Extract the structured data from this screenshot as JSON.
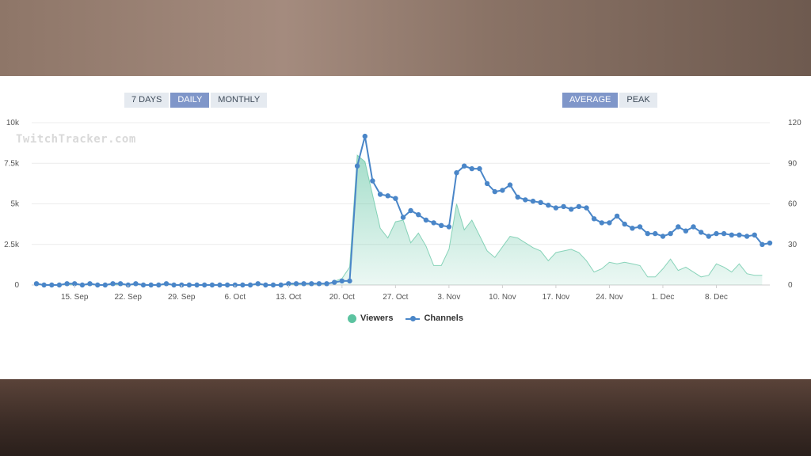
{
  "range_buttons": [
    {
      "label": "7 DAYS",
      "active": false
    },
    {
      "label": "DAILY",
      "active": true
    },
    {
      "label": "MONTHLY",
      "active": false
    }
  ],
  "mode_buttons": [
    {
      "label": "AVERAGE",
      "active": true
    },
    {
      "label": "PEAK",
      "active": false
    }
  ],
  "watermark": "TwitchTracker.com",
  "legend": {
    "viewers": "Viewers",
    "channels": "Channels"
  },
  "colors": {
    "viewers": "#5cc3a0",
    "channels": "#4a86c8",
    "active_button": "#7f96c9"
  },
  "chart_data": {
    "type": "area+line",
    "x_tick_labels": [
      "15. Sep",
      "22. Sep",
      "29. Sep",
      "6. Oct",
      "13. Oct",
      "20. Oct",
      "27. Oct",
      "3. Nov",
      "10. Nov",
      "17. Nov",
      "24. Nov",
      "1. Dec",
      "8. Dec"
    ],
    "y_left": {
      "ticks": [
        "0",
        "2.5k",
        "5k",
        "7.5k",
        "10k"
      ],
      "range": [
        0,
        10000
      ]
    },
    "y_right": {
      "ticks": [
        "0",
        "30",
        "60",
        "90",
        "120"
      ],
      "range": [
        0,
        120
      ]
    },
    "x_range_days": [
      0,
      96
    ],
    "grid": true,
    "legend_position": "bottom-center",
    "series": [
      {
        "name": "Viewers",
        "kind": "area",
        "points": [
          [
            0,
            20
          ],
          [
            10,
            20
          ],
          [
            20,
            20
          ],
          [
            30,
            20
          ],
          [
            38,
            60
          ],
          [
            40,
            400
          ],
          [
            41,
            1100
          ],
          [
            42,
            8000
          ],
          [
            43,
            7600
          ],
          [
            45,
            3500
          ],
          [
            46,
            2900
          ],
          [
            47,
            3900
          ],
          [
            48,
            4000
          ],
          [
            49,
            2600
          ],
          [
            50,
            3200
          ],
          [
            51,
            2400
          ],
          [
            52,
            1200
          ],
          [
            53,
            1200
          ],
          [
            54,
            2200
          ],
          [
            55,
            5000
          ],
          [
            56,
            3400
          ],
          [
            57,
            4000
          ],
          [
            59,
            2100
          ],
          [
            60,
            1700
          ],
          [
            62,
            3000
          ],
          [
            63,
            2900
          ],
          [
            65,
            2300
          ],
          [
            66,
            2100
          ],
          [
            67,
            1500
          ],
          [
            68,
            2000
          ],
          [
            70,
            2200
          ],
          [
            71,
            2000
          ],
          [
            72,
            1500
          ],
          [
            73,
            800
          ],
          [
            74,
            1000
          ],
          [
            75,
            1400
          ],
          [
            76,
            1300
          ],
          [
            77,
            1400
          ],
          [
            78,
            1300
          ],
          [
            79,
            1200
          ],
          [
            80,
            500
          ],
          [
            81,
            500
          ],
          [
            82,
            1000
          ],
          [
            83,
            1600
          ],
          [
            84,
            900
          ],
          [
            85,
            1100
          ],
          [
            86,
            800
          ],
          [
            87,
            500
          ],
          [
            88,
            600
          ],
          [
            89,
            1300
          ],
          [
            90,
            1100
          ],
          [
            91,
            800
          ],
          [
            92,
            1300
          ],
          [
            93,
            700
          ],
          [
            94,
            600
          ],
          [
            95,
            600
          ]
        ]
      },
      {
        "name": "Channels",
        "kind": "line",
        "points": [
          [
            0,
            1
          ],
          [
            1,
            0
          ],
          [
            2,
            0
          ],
          [
            3,
            0
          ],
          [
            4,
            1
          ],
          [
            5,
            1
          ],
          [
            6,
            0
          ],
          [
            7,
            1
          ],
          [
            8,
            0
          ],
          [
            9,
            0
          ],
          [
            10,
            1
          ],
          [
            11,
            1
          ],
          [
            12,
            0
          ],
          [
            13,
            1
          ],
          [
            14,
            0
          ],
          [
            15,
            0
          ],
          [
            16,
            0
          ],
          [
            17,
            1
          ],
          [
            18,
            0
          ],
          [
            19,
            0
          ],
          [
            20,
            0
          ],
          [
            21,
            0
          ],
          [
            22,
            0
          ],
          [
            23,
            0
          ],
          [
            24,
            0
          ],
          [
            25,
            0
          ],
          [
            26,
            0
          ],
          [
            27,
            0
          ],
          [
            28,
            0
          ],
          [
            29,
            1
          ],
          [
            30,
            0
          ],
          [
            31,
            0
          ],
          [
            32,
            0
          ],
          [
            33,
            1
          ],
          [
            34,
            1
          ],
          [
            35,
            1
          ],
          [
            36,
            1
          ],
          [
            37,
            1
          ],
          [
            38,
            1
          ],
          [
            39,
            2
          ],
          [
            40,
            3
          ],
          [
            41,
            3
          ],
          [
            42,
            88
          ],
          [
            43,
            110
          ],
          [
            44,
            77
          ],
          [
            45,
            67
          ],
          [
            46,
            66
          ],
          [
            47,
            64
          ],
          [
            48,
            50
          ],
          [
            49,
            55
          ],
          [
            50,
            52
          ],
          [
            51,
            48
          ],
          [
            52,
            46
          ],
          [
            53,
            44
          ],
          [
            54,
            43
          ],
          [
            55,
            83
          ],
          [
            56,
            88
          ],
          [
            57,
            86
          ],
          [
            58,
            86
          ],
          [
            59,
            75
          ],
          [
            60,
            69
          ],
          [
            61,
            70
          ],
          [
            62,
            74
          ],
          [
            63,
            65
          ],
          [
            64,
            63
          ],
          [
            65,
            62
          ],
          [
            66,
            61
          ],
          [
            67,
            59
          ],
          [
            68,
            57
          ],
          [
            69,
            58
          ],
          [
            70,
            56
          ],
          [
            71,
            58
          ],
          [
            72,
            57
          ],
          [
            73,
            49
          ],
          [
            74,
            46
          ],
          [
            75,
            46
          ],
          [
            76,
            51
          ],
          [
            77,
            45
          ],
          [
            78,
            42
          ],
          [
            79,
            43
          ],
          [
            80,
            38
          ],
          [
            81,
            38
          ],
          [
            82,
            36
          ],
          [
            83,
            38
          ],
          [
            84,
            43
          ],
          [
            85,
            40
          ],
          [
            86,
            43
          ],
          [
            87,
            39
          ],
          [
            88,
            36
          ],
          [
            89,
            38
          ],
          [
            90,
            38
          ],
          [
            91,
            37
          ],
          [
            92,
            37
          ],
          [
            93,
            36
          ],
          [
            94,
            37
          ],
          [
            95,
            30
          ],
          [
            96,
            31
          ]
        ]
      }
    ]
  }
}
